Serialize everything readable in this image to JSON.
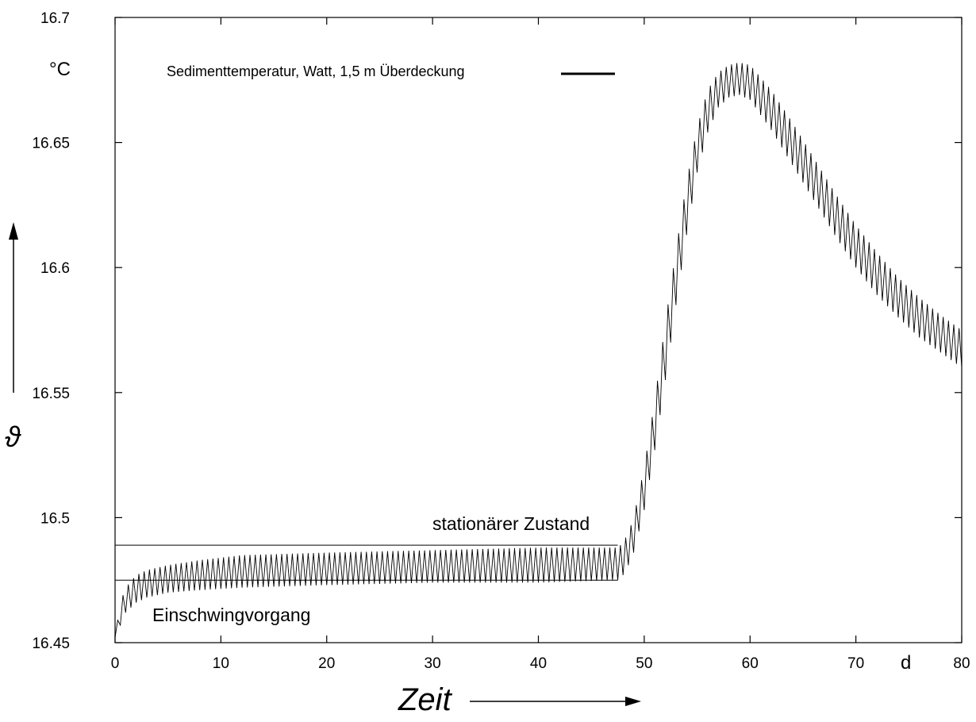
{
  "chart_data": {
    "type": "line",
    "title": "",
    "xlabel": "Zeit",
    "ylabel": "ϑ",
    "x_unit": "d",
    "y_unit": "°C",
    "xlim": [
      0,
      80
    ],
    "ylim": [
      16.45,
      16.7
    ],
    "x_ticks": [
      "0",
      "10",
      "20",
      "30",
      "40",
      "50",
      "60",
      "70",
      "80"
    ],
    "y_ticks": [
      "16.45",
      "16.5",
      "16.55",
      "16.6",
      "16.65",
      "16.7"
    ],
    "grid": false,
    "legend": {
      "position": "top",
      "entries": [
        "Sedimenttemperatur, Watt, 1,5 m Überdeckung"
      ]
    },
    "series": [
      {
        "name": "Sedimenttemperatur, Watt, 1,5 m Überdeckung",
        "oscillation_period_days": 0.5,
        "envelope": [
          {
            "x": 0,
            "low": 16.452,
            "high": 16.452
          },
          {
            "x": 0.5,
            "low": 16.457,
            "high": 16.466
          },
          {
            "x": 1,
            "low": 16.462,
            "high": 16.472
          },
          {
            "x": 2,
            "low": 16.466,
            "high": 16.477
          },
          {
            "x": 3,
            "low": 16.468,
            "high": 16.479
          },
          {
            "x": 5,
            "low": 16.47,
            "high": 16.481
          },
          {
            "x": 8,
            "low": 16.471,
            "high": 16.483
          },
          {
            "x": 12,
            "low": 16.472,
            "high": 16.485
          },
          {
            "x": 20,
            "low": 16.473,
            "high": 16.486
          },
          {
            "x": 30,
            "low": 16.474,
            "high": 16.487
          },
          {
            "x": 40,
            "low": 16.474,
            "high": 16.488
          },
          {
            "x": 47.5,
            "low": 16.475,
            "high": 16.488
          },
          {
            "x": 48,
            "low": 16.477,
            "high": 16.49
          },
          {
            "x": 48.5,
            "low": 16.481,
            "high": 16.494
          },
          {
            "x": 49,
            "low": 16.486,
            "high": 16.5
          },
          {
            "x": 50,
            "low": 16.503,
            "high": 16.52
          },
          {
            "x": 51,
            "low": 16.527,
            "high": 16.547
          },
          {
            "x": 52,
            "low": 16.555,
            "high": 16.578
          },
          {
            "x": 53,
            "low": 16.585,
            "high": 16.607
          },
          {
            "x": 54,
            "low": 16.613,
            "high": 16.634
          },
          {
            "x": 55,
            "low": 16.638,
            "high": 16.656
          },
          {
            "x": 56,
            "low": 16.654,
            "high": 16.671
          },
          {
            "x": 57,
            "low": 16.664,
            "high": 16.678
          },
          {
            "x": 58,
            "low": 16.668,
            "high": 16.681
          },
          {
            "x": 59,
            "low": 16.669,
            "high": 16.682
          },
          {
            "x": 60,
            "low": 16.667,
            "high": 16.681
          },
          {
            "x": 62,
            "low": 16.655,
            "high": 16.671
          },
          {
            "x": 64,
            "low": 16.641,
            "high": 16.658
          },
          {
            "x": 66,
            "low": 16.627,
            "high": 16.644
          },
          {
            "x": 68,
            "low": 16.613,
            "high": 16.63
          },
          {
            "x": 70,
            "low": 16.6,
            "high": 16.617
          },
          {
            "x": 72,
            "low": 16.589,
            "high": 16.606
          },
          {
            "x": 74,
            "low": 16.58,
            "high": 16.596
          },
          {
            "x": 76,
            "low": 16.572,
            "high": 16.588
          },
          {
            "x": 78,
            "low": 16.566,
            "high": 16.581
          },
          {
            "x": 80,
            "low": 16.56,
            "high": 16.575
          }
        ]
      }
    ],
    "reference_lines": [
      {
        "y": 16.489,
        "x_start": 0,
        "x_end": 47.5
      },
      {
        "y": 16.475,
        "x_start": 0,
        "x_end": 47.5
      }
    ],
    "annotations": {
      "stationary": "stationärer Zustand",
      "transient": "Einschwingvorgang"
    }
  }
}
